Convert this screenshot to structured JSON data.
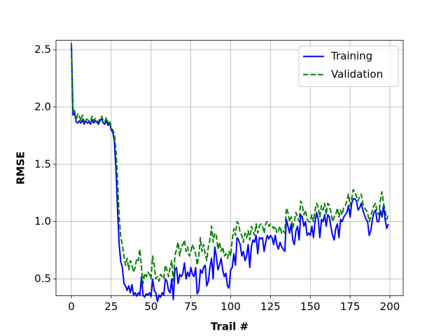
{
  "chart_data": {
    "type": "line",
    "x_label": "Trail #",
    "y_label": "RMSE",
    "x": [
      0,
      1,
      2,
      3,
      4,
      5,
      6,
      7,
      8,
      9,
      10,
      11,
      12,
      13,
      14,
      15,
      16,
      17,
      18,
      19,
      20,
      21,
      22,
      23,
      24,
      25,
      26,
      27,
      28,
      29,
      30,
      31,
      32,
      33,
      34,
      35,
      36,
      37,
      38,
      39,
      40,
      41,
      42,
      43,
      44,
      45,
      46,
      47,
      48,
      49,
      50,
      51,
      52,
      53,
      54,
      55,
      56,
      57,
      58,
      59,
      60,
      61,
      62,
      63,
      64,
      65,
      66,
      67,
      68,
      69,
      70,
      71,
      72,
      73,
      74,
      75,
      76,
      77,
      78,
      79,
      80,
      81,
      82,
      83,
      84,
      85,
      86,
      87,
      88,
      89,
      90,
      91,
      92,
      93,
      94,
      95,
      96,
      97,
      98,
      99,
      100,
      101,
      102,
      103,
      104,
      105,
      106,
      107,
      108,
      109,
      110,
      111,
      112,
      113,
      114,
      115,
      116,
      117,
      118,
      119,
      120,
      121,
      122,
      123,
      124,
      125,
      126,
      127,
      128,
      129,
      130,
      131,
      132,
      133,
      134,
      135,
      136,
      137,
      138,
      139,
      140,
      141,
      142,
      143,
      144,
      145,
      146,
      147,
      148,
      149,
      150,
      151,
      152,
      153,
      154,
      155,
      156,
      157,
      158,
      159,
      160,
      161,
      162,
      163,
      164,
      165,
      166,
      167,
      168,
      169,
      170,
      171,
      172,
      173,
      174,
      175,
      176,
      177,
      178,
      179,
      180,
      181,
      182,
      183,
      184,
      185,
      186,
      187,
      188,
      189,
      190,
      191,
      192,
      193,
      194,
      195,
      196,
      197,
      198,
      199
    ],
    "series": [
      {
        "name": "Training",
        "color": "#0000ff",
        "dash": "solid",
        "values": [
          2.55,
          1.93,
          1.95,
          1.87,
          1.86,
          1.88,
          1.86,
          1.89,
          1.85,
          1.88,
          1.86,
          1.87,
          1.85,
          1.89,
          1.86,
          1.88,
          1.87,
          1.85,
          1.88,
          1.9,
          1.86,
          1.85,
          1.88,
          1.84,
          1.86,
          1.8,
          1.78,
          1.7,
          1.45,
          1.1,
          0.8,
          0.65,
          0.6,
          0.46,
          0.44,
          0.4,
          0.44,
          0.38,
          0.45,
          0.36,
          0.38,
          0.35,
          0.38,
          0.36,
          0.52,
          0.36,
          0.34,
          0.37,
          0.36,
          0.38,
          0.35,
          0.5,
          0.4,
          0.38,
          0.3,
          0.36,
          0.34,
          0.38,
          0.36,
          0.5,
          0.48,
          0.4,
          0.38,
          0.5,
          0.32,
          0.58,
          0.6,
          0.46,
          0.54,
          0.52,
          0.55,
          0.64,
          0.5,
          0.56,
          0.52,
          0.6,
          0.54,
          0.52,
          0.6,
          0.37,
          0.4,
          0.58,
          0.55,
          0.6,
          0.62,
          0.44,
          0.48,
          0.6,
          0.68,
          0.5,
          0.78,
          0.7,
          0.58,
          0.62,
          0.68,
          0.58,
          0.52,
          0.55,
          0.44,
          0.42,
          0.58,
          0.6,
          0.72,
          0.62,
          0.86,
          0.84,
          0.8,
          0.7,
          0.74,
          0.66,
          0.7,
          0.8,
          0.6,
          0.78,
          0.84,
          0.82,
          0.88,
          0.72,
          0.86,
          0.85,
          0.86,
          0.74,
          0.82,
          0.88,
          0.85,
          0.88,
          0.86,
          0.8,
          0.88,
          0.8,
          0.76,
          0.82,
          0.78,
          0.76,
          0.74,
          1.02,
          0.96,
          0.9,
          0.98,
          0.84,
          0.8,
          0.92,
          0.96,
          0.84,
          1.06,
          1.04,
          0.96,
          1.0,
          0.88,
          0.9,
          0.88,
          0.96,
          0.86,
          1.0,
          1.08,
          1.02,
          0.86,
          1.02,
          1.0,
          1.06,
          0.96,
          1.06,
          1.04,
          0.95,
          0.88,
          0.84,
          0.94,
          0.98,
          0.86,
          1.02,
          1.0,
          1.04,
          1.06,
          1.08,
          1.14,
          1.04,
          1.16,
          1.2,
          1.2,
          1.18,
          1.1,
          1.12,
          1.16,
          1.1,
          1.06,
          1.02,
          1.0,
          0.88,
          0.92,
          1.02,
          1.08,
          1.1,
          1.0,
          1.0,
          1.1,
          1.04,
          1.14,
          1.02,
          0.94,
          0.98
        ]
      },
      {
        "name": "Validation",
        "color": "#008000",
        "dash": "dashed",
        "values": [
          2.56,
          1.97,
          1.97,
          1.88,
          1.94,
          1.92,
          1.88,
          1.93,
          1.87,
          1.9,
          1.89,
          1.88,
          1.87,
          1.92,
          1.88,
          1.9,
          1.89,
          1.87,
          1.9,
          1.92,
          1.88,
          1.87,
          1.91,
          1.86,
          1.88,
          1.82,
          1.8,
          1.76,
          1.62,
          1.35,
          1.05,
          0.86,
          0.8,
          0.7,
          0.62,
          0.68,
          0.58,
          0.66,
          0.62,
          0.56,
          0.6,
          0.68,
          0.66,
          0.76,
          0.6,
          0.46,
          0.55,
          0.52,
          0.56,
          0.54,
          0.5,
          0.7,
          0.62,
          0.5,
          0.52,
          0.48,
          0.54,
          0.52,
          0.5,
          0.62,
          0.58,
          0.52,
          0.6,
          0.66,
          0.48,
          0.7,
          0.76,
          0.82,
          0.7,
          0.78,
          0.8,
          0.84,
          0.74,
          0.78,
          0.7,
          0.74,
          0.8,
          0.76,
          0.72,
          0.62,
          0.7,
          0.86,
          0.74,
          0.8,
          0.72,
          0.66,
          0.78,
          0.84,
          0.96,
          0.82,
          0.9,
          0.88,
          0.76,
          0.82,
          0.74,
          0.78,
          0.7,
          0.72,
          0.68,
          0.74,
          0.7,
          0.84,
          0.94,
          0.88,
          1.0,
          0.98,
          0.9,
          0.88,
          0.82,
          0.9,
          0.86,
          0.92,
          0.84,
          0.96,
          0.92,
          0.88,
          0.98,
          0.9,
          0.96,
          0.98,
          0.96,
          0.9,
          0.98,
          1.0,
          0.96,
          0.98,
          0.96,
          0.94,
          0.96,
          0.9,
          0.92,
          0.96,
          0.9,
          0.92,
          0.9,
          1.12,
          1.08,
          1.0,
          1.04,
          0.94,
          1.0,
          1.08,
          1.04,
          1.0,
          1.18,
          1.14,
          1.06,
          1.1,
          1.02,
          1.0,
          1.0,
          1.06,
          1.0,
          1.1,
          1.16,
          1.12,
          1.04,
          1.14,
          1.1,
          1.16,
          1.06,
          1.16,
          1.14,
          1.08,
          1.0,
          1.04,
          1.06,
          1.12,
          1.04,
          1.1,
          1.06,
          1.12,
          1.14,
          1.18,
          1.24,
          1.14,
          1.2,
          1.28,
          1.26,
          1.22,
          1.18,
          1.22,
          1.24,
          1.16,
          1.12,
          1.1,
          1.08,
          1.0,
          1.04,
          1.1,
          1.14,
          1.16,
          1.08,
          1.06,
          1.18,
          1.26,
          1.16,
          1.1,
          1.02,
          1.06
        ]
      }
    ],
    "xlim": [
      -9.67,
      208.35
    ],
    "ylim": [
      0.354,
      2.582
    ],
    "xticks": [
      0,
      25,
      50,
      75,
      100,
      125,
      150,
      175,
      200
    ],
    "yticks": [
      0.5,
      {
        "value": 1,
        "label": "1.0"
      },
      1.5,
      {
        "value": 2,
        "label": "2.0"
      },
      2.5
    ],
    "grid": true,
    "legend": "upper right"
  }
}
